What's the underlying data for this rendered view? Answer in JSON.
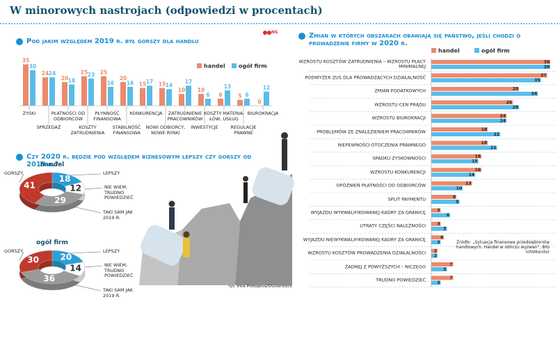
{
  "header": {
    "title": "W minorowych nastrojach (odpowiedzi w procentach)",
    "logo": "NS"
  },
  "chart_data": [
    {
      "type": "bar",
      "title": "Pod jakim względem 2019 r. był gorszy dla handlu",
      "categories": [
        "ZYSKI",
        "SPRZEDAŻ",
        "PŁATNOŚCI OD ODBIORCÓW",
        "KOSZTY ZATRUDNIENIA",
        "PŁYNNOŚĆ FINANSOWA",
        "STABILNOŚĆ FINANSOWA",
        "KONKURENCJA",
        "NOWI ODBIORCY, NOWE RYNKI",
        "ZATRUDNIENIE PRACOWNIKÓW",
        "INWESTYCJE",
        "KOSZTY MATERIA-ŁÓW, USŁUG",
        "REGULACJE PRAWNE",
        "BIUROKRACJA"
      ],
      "series": [
        {
          "name": "handel",
          "color": "#ec8a6c",
          "values": [
            35,
            24,
            20,
            25,
            25,
            20,
            15,
            15,
            10,
            10,
            6,
            5,
            0
          ]
        },
        {
          "name": "ogół firm",
          "color": "#58bde9",
          "values": [
            30,
            24,
            18,
            23,
            16,
            16,
            17,
            14,
            17,
            6,
            13,
            6,
            12
          ]
        }
      ]
    },
    {
      "type": "donut",
      "title": "Czy 2020 r. będzie pod względem biznesowym lepszy czy gorszy od 2019 r.?",
      "subtitle": "handel",
      "categories": [
        "GORSZY",
        "LEPSZY",
        "NIE WIEM, TRUDNO POWIEDZIEĆ",
        "TAKI SAM JAK 2019 R."
      ],
      "values": [
        41,
        18,
        12,
        29
      ],
      "colors": [
        "#c0392b",
        "#2b9fd8",
        "#ffffff",
        "#9a9a9a"
      ]
    },
    {
      "type": "donut",
      "subtitle": "ogół firm",
      "categories": [
        "GORSZY",
        "LEPSZY",
        "NIE WIEM, TRUDNO POWIEDZIEĆ",
        "TAKI SAM JAK 2019 R."
      ],
      "values": [
        30,
        20,
        14,
        36
      ],
      "colors": [
        "#c0392b",
        "#2b9fd8",
        "#ffffff",
        "#9a9a9a"
      ]
    },
    {
      "type": "hbar",
      "title": "Zmian w których obszarach obawiają się państwo, jeśli chodzi o prowadzenie firmy w 2020 r.",
      "categories": [
        "WZROSTU KOSZTÓW ZATRUDNIENIA – WZROSTU PŁACY MINIMALNEJ",
        "PODWYŻEK ZUS DLA PROWADZĄCYCH DZIAŁALNOŚĆ",
        "ZMIAN PODATKOWYCH",
        "WZROSTU CEN PRĄDU",
        "WZROSTU BIUROKRACJI",
        "PROBLEMÓW ZE ZNALEZIENIEM PRACOWNIKÓW",
        "NIEPEWNOŚCI OTOCZENIA PRAWNEGO",
        "SPADKU ZYSKOWNOŚCI",
        "WZROSTU KONKURENCJI",
        "OPÓŹNIEŃ PŁATNOŚCI OD ODBIORCÓW",
        "SPLIT PAYMENTU",
        "WYJAZDU WYKWALIFIKOWANEJ KADRY ZA GRANICĘ",
        "UTRATY CZĘŚCI NALEŻNOŚCI",
        "WYJAZDU NIEWYKWALIFIKOWANEJ KADRY ZA GRANICĘ",
        "WZROSTU KOSZTÓW PROWADZENIA DZIAŁALNOŚCI",
        "ŻADNEJ Z POWYŻSZYCH – NICZEGO",
        "TRUDNO POWIEDZIEĆ"
      ],
      "series": [
        {
          "name": "handel",
          "color": "#ec8a6c",
          "values": [
            38,
            37,
            28,
            26,
            24,
            18,
            18,
            16,
            16,
            13,
            8,
            3,
            3,
            4,
            2,
            7,
            7
          ]
        },
        {
          "name": "ogół firm",
          "color": "#58bde9",
          "values": [
            38,
            35,
            34,
            28,
            24,
            22,
            21,
            15,
            14,
            10,
            9,
            6,
            5,
            3,
            2,
            5,
            3
          ]
        }
      ],
      "source": "Źródło: „Sytuacja finansowa przedsiębiorstw handlowych. Handel w obliczu wyzwań”, BIG InfoMonitor"
    }
  ],
  "illustration": {
    "credit": "rys. Irina Prokopeva/Shutterstock"
  }
}
